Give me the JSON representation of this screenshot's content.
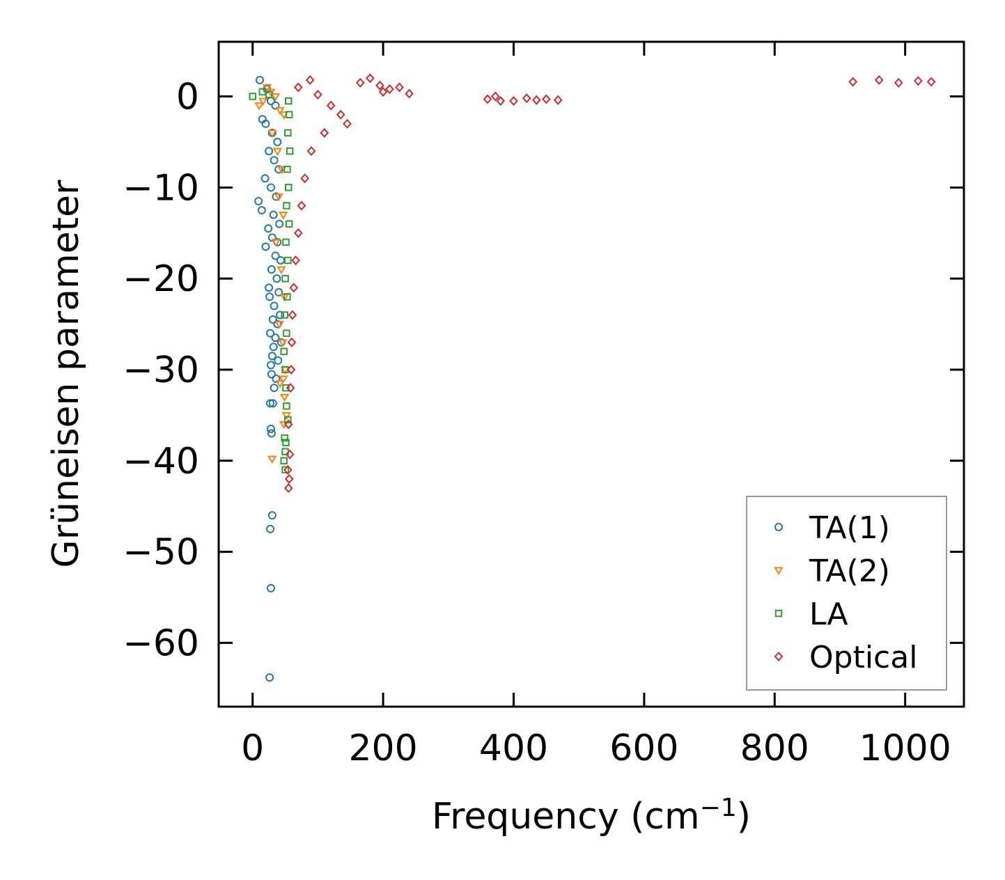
{
  "chart_data": {
    "type": "scatter",
    "title": "",
    "xlabel": "Frequency (cm",
    "xlabel_sup": "−1",
    "xlabel_end": ")",
    "ylabel": "Grüneisen parameter",
    "xlim": [
      -52,
      1090
    ],
    "ylim": [
      -67,
      6
    ],
    "xticks": [
      0,
      200,
      400,
      600,
      800,
      1000
    ],
    "xtick_labels": [
      "0",
      "200",
      "400",
      "600",
      "800",
      "1000"
    ],
    "yticks": [
      0,
      -10,
      -20,
      -30,
      -40,
      -50,
      -60
    ],
    "ytick_labels": [
      "0",
      "−10",
      "−20",
      "−30",
      "−40",
      "−50",
      "−60"
    ],
    "grid": false,
    "legend_position": "bottom-right",
    "series": [
      {
        "name": "TA(1)",
        "color": "#1f77b4",
        "marker": "circle",
        "points": [
          [
            11,
            1.8
          ],
          [
            22,
            0.8
          ],
          [
            28,
            -0.5
          ],
          [
            35,
            -1
          ],
          [
            15,
            -2.5
          ],
          [
            20,
            -3
          ],
          [
            30,
            -4
          ],
          [
            38,
            -5
          ],
          [
            25,
            -6
          ],
          [
            33,
            -7
          ],
          [
            40,
            -8
          ],
          [
            19,
            -9
          ],
          [
            28,
            -10
          ],
          [
            36,
            -11
          ],
          [
            9,
            -11.5
          ],
          [
            14,
            -12.5
          ],
          [
            32,
            -13
          ],
          [
            41,
            -14
          ],
          [
            24,
            -14.5
          ],
          [
            30,
            -15.5
          ],
          [
            38,
            -16
          ],
          [
            20,
            -16.5
          ],
          [
            35,
            -17.5
          ],
          [
            43,
            -18
          ],
          [
            29,
            -19
          ],
          [
            37,
            -20
          ],
          [
            25,
            -21
          ],
          [
            40,
            -21.5
          ],
          [
            26,
            -22
          ],
          [
            33,
            -23
          ],
          [
            42,
            -24
          ],
          [
            31,
            -24.5
          ],
          [
            38,
            -25
          ],
          [
            27,
            -26
          ],
          [
            35,
            -26.5
          ],
          [
            44,
            -27
          ],
          [
            32,
            -27.5
          ],
          [
            30,
            -28.5
          ],
          [
            39,
            -29
          ],
          [
            28,
            -29.5
          ],
          [
            29,
            -30.5
          ],
          [
            36,
            -31
          ],
          [
            33,
            -32
          ],
          [
            27,
            -33.7
          ],
          [
            31,
            -33.7
          ],
          [
            28,
            -36.5
          ],
          [
            29,
            -37
          ],
          [
            30,
            -46
          ],
          [
            27,
            -47.5
          ],
          [
            28,
            -54
          ],
          [
            26,
            -63.8
          ]
        ]
      },
      {
        "name": "TA(2)",
        "color": "#ff7f0e",
        "marker": "triangle-down",
        "points": [
          [
            10,
            -1
          ],
          [
            16,
            -0.5
          ],
          [
            22,
            1
          ],
          [
            28,
            0.5
          ],
          [
            35,
            0
          ],
          [
            42,
            -1.5
          ],
          [
            48,
            -2
          ],
          [
            30,
            -4
          ],
          [
            38,
            -6
          ],
          [
            45,
            -8
          ],
          [
            40,
            -11
          ],
          [
            47,
            -13
          ],
          [
            36,
            -16
          ],
          [
            44,
            -19
          ],
          [
            49,
            -22
          ],
          [
            41,
            -25
          ],
          [
            46,
            -27
          ],
          [
            50,
            -30
          ],
          [
            47,
            -31
          ],
          [
            42,
            -31.5
          ],
          [
            49,
            -33
          ],
          [
            52,
            -35
          ],
          [
            48,
            -36
          ],
          [
            30,
            -39.8
          ]
        ]
      },
      {
        "name": "LA",
        "color": "#2ca02c",
        "marker": "square",
        "points": [
          [
            0,
            0
          ],
          [
            15,
            0.5
          ],
          [
            25,
            0.2
          ],
          [
            55,
            -0.5
          ],
          [
            56,
            -2
          ],
          [
            54,
            -4
          ],
          [
            57,
            -6
          ],
          [
            53,
            -8
          ],
          [
            55,
            -10
          ],
          [
            52,
            -12
          ],
          [
            56,
            -14
          ],
          [
            51,
            -16
          ],
          [
            54,
            -18
          ],
          [
            50,
            -20
          ],
          [
            53,
            -22
          ],
          [
            49,
            -24
          ],
          [
            52,
            -26
          ],
          [
            48,
            -28
          ],
          [
            50,
            -30
          ],
          [
            51,
            -32
          ],
          [
            52,
            -34
          ],
          [
            54,
            -35.5
          ],
          [
            49,
            -37.5
          ],
          [
            51,
            -38
          ],
          [
            50,
            -39
          ],
          [
            48,
            -40
          ],
          [
            50,
            -41
          ]
        ]
      },
      {
        "name": "Optical",
        "color": "#d62728",
        "marker": "diamond",
        "points": [
          [
            70,
            1
          ],
          [
            88,
            1.8
          ],
          [
            100,
            0.2
          ],
          [
            120,
            -1
          ],
          [
            135,
            -2
          ],
          [
            145,
            -3
          ],
          [
            110,
            -4
          ],
          [
            90,
            -6
          ],
          [
            80,
            -9
          ],
          [
            75,
            -12
          ],
          [
            70,
            -15
          ],
          [
            66,
            -18
          ],
          [
            63,
            -21
          ],
          [
            61,
            -24
          ],
          [
            60,
            -27
          ],
          [
            59,
            -30
          ],
          [
            58,
            -32
          ],
          [
            55,
            -36
          ],
          [
            57,
            -39.3
          ],
          [
            54,
            -41
          ],
          [
            56,
            -42
          ],
          [
            55,
            -43
          ],
          [
            165,
            1.5
          ],
          [
            180,
            2
          ],
          [
            195,
            1.2
          ],
          [
            210,
            0.8
          ],
          [
            225,
            1
          ],
          [
            240,
            0.3
          ],
          [
            200,
            0.5
          ],
          [
            360,
            -0.3
          ],
          [
            372,
            0
          ],
          [
            380,
            -0.5
          ],
          [
            400,
            -0.5
          ],
          [
            420,
            -0.2
          ],
          [
            435,
            -0.4
          ],
          [
            450,
            -0.3
          ],
          [
            468,
            -0.4
          ],
          [
            920,
            1.6
          ],
          [
            960,
            1.8
          ],
          [
            990,
            1.5
          ],
          [
            1020,
            1.7
          ],
          [
            1040,
            1.6
          ]
        ]
      }
    ]
  }
}
